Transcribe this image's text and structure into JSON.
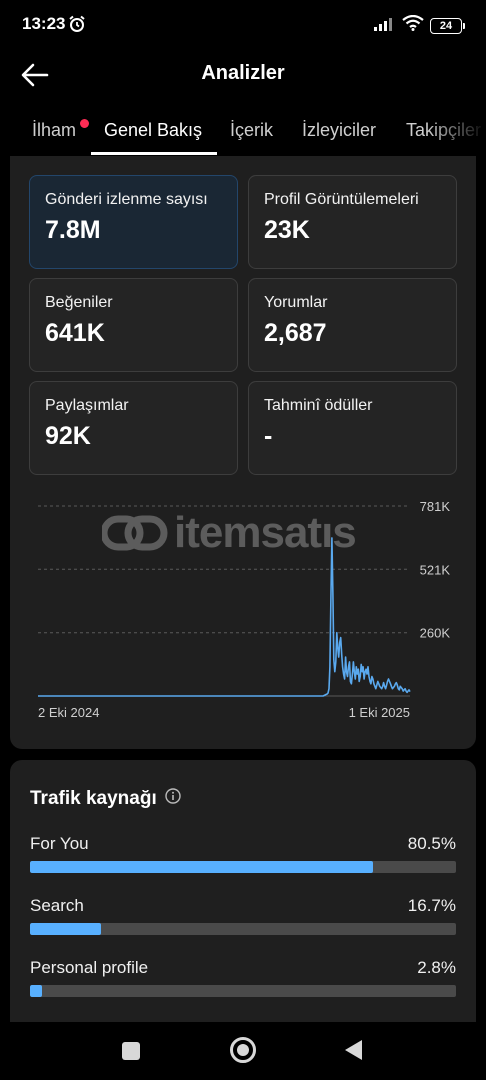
{
  "status": {
    "time": "13:23",
    "battery": "24"
  },
  "header": {
    "title": "Analizler"
  },
  "tabs": [
    {
      "label": "İlham"
    },
    {
      "label": "Genel Bakış"
    },
    {
      "label": "İçerik"
    },
    {
      "label": "İzleyiciler"
    },
    {
      "label": "Takipçiler"
    }
  ],
  "metrics": [
    {
      "label": "Gönderi izlenme sayısı",
      "value": "7.8M"
    },
    {
      "label": "Profil Görüntülemeleri",
      "value": "23K"
    },
    {
      "label": "Beğeniler",
      "value": "641K"
    },
    {
      "label": "Yorumlar",
      "value": "2,687"
    },
    {
      "label": "Paylaşımlar",
      "value": "92K"
    },
    {
      "label": "Tahminî ödüller",
      "value": "-"
    }
  ],
  "watermark": {
    "text": "itemsatıs"
  },
  "chart_data": {
    "type": "line",
    "x_start_label": "2 Eki 2024",
    "x_end_label": "1 Eki 2025",
    "y_ticks": [
      "781K",
      "521K",
      "260K"
    ],
    "y_tick_values": [
      781000,
      521000,
      260000
    ],
    "ylim": [
      0,
      781000
    ],
    "grid": true,
    "series": [
      {
        "color": "#5aa9ee",
        "values": [
          0,
          0,
          0,
          0,
          0,
          0,
          0,
          0,
          0,
          0,
          0,
          0,
          0,
          0,
          0,
          0,
          0,
          0,
          0,
          0,
          0,
          0,
          0,
          0,
          0,
          0,
          0,
          0,
          0,
          0,
          0,
          0,
          0,
          0,
          0,
          0,
          0,
          0,
          0,
          0,
          0,
          0,
          0,
          0,
          0,
          0,
          0,
          0,
          0,
          0,
          0,
          0,
          0,
          0,
          0,
          0,
          0,
          0,
          0,
          0,
          0,
          0,
          0,
          0,
          0,
          0,
          0,
          0,
          0,
          0,
          0,
          0,
          0,
          0,
          0,
          0,
          0,
          0,
          0,
          0,
          0,
          0,
          0,
          0,
          0,
          0,
          0,
          0,
          0,
          0,
          0,
          0,
          0,
          0,
          0,
          0,
          0,
          0,
          0,
          0,
          0,
          0,
          0,
          0,
          0,
          0,
          0,
          0,
          0,
          0,
          0,
          0,
          0,
          0,
          0,
          0,
          0,
          0,
          0,
          0,
          0,
          0,
          0,
          0,
          0,
          0,
          0,
          0,
          0,
          0,
          0,
          0,
          0,
          0,
          0,
          0,
          0,
          0,
          0,
          0,
          0,
          0,
          0,
          0,
          0,
          0,
          0,
          0,
          0,
          0,
          0,
          0,
          0,
          0,
          0,
          0,
          0,
          0,
          0,
          0,
          0,
          0,
          0,
          0,
          0,
          0,
          0,
          0,
          0,
          0,
          0,
          0,
          0,
          0,
          0,
          0,
          0,
          0,
          0,
          0,
          0,
          0,
          0,
          0,
          0,
          0,
          0,
          0,
          0,
          0,
          0,
          0,
          0,
          0,
          0,
          0,
          0,
          0,
          0,
          0,
          0,
          0,
          0,
          0,
          0,
          0,
          0,
          0,
          0,
          0,
          0,
          0,
          0,
          0,
          0,
          0,
          0,
          0,
          0,
          0,
          0,
          0,
          0,
          0,
          0,
          0,
          0,
          0,
          0,
          0,
          0,
          0,
          0,
          0,
          0,
          0,
          0,
          0,
          0,
          0,
          0,
          0,
          0,
          0,
          0,
          0,
          0,
          0,
          0,
          0,
          0,
          0,
          0,
          0,
          0,
          0,
          0,
          0,
          0,
          0,
          0,
          0,
          0,
          0,
          0,
          0,
          0,
          0,
          0,
          0,
          0,
          0,
          0,
          0,
          0,
          0,
          0,
          0,
          0,
          0,
          0,
          0,
          0,
          0,
          0,
          0,
          0,
          0,
          0,
          0,
          0,
          0,
          0,
          2000,
          4000,
          6000,
          8000,
          12000,
          30000,
          120000,
          400000,
          650000,
          420000,
          150000,
          100000,
          140000,
          260000,
          200000,
          160000,
          220000,
          240000,
          170000,
          120000,
          90000,
          70000,
          160000,
          100000,
          80000,
          120000,
          140000,
          60000,
          50000,
          90000,
          140000,
          100000,
          70000,
          120000,
          90000,
          110000,
          60000,
          80000,
          130000,
          100000,
          120000,
          70000,
          100000,
          110000,
          90000,
          120000,
          80000,
          60000,
          50000,
          80000,
          70000,
          50000,
          40000,
          30000,
          45000,
          60000,
          50000,
          40000,
          35000,
          30000,
          40000,
          55000,
          40000,
          30000,
          45000,
          60000,
          70000,
          60000,
          50000,
          40000,
          30000,
          35000,
          40000,
          50000,
          55000,
          45000,
          30000,
          25000,
          40000,
          35000,
          30000,
          20000,
          25000,
          30000,
          20000,
          15000,
          20000,
          25000,
          18000
        ]
      }
    ]
  },
  "traffic": {
    "title": "Trafik kaynağı",
    "rows": [
      {
        "name": "For You",
        "pct": "80.5%",
        "fraction": 0.805
      },
      {
        "name": "Search",
        "pct": "16.7%",
        "fraction": 0.167
      },
      {
        "name": "Personal profile",
        "pct": "2.8%",
        "fraction": 0.028
      }
    ]
  }
}
